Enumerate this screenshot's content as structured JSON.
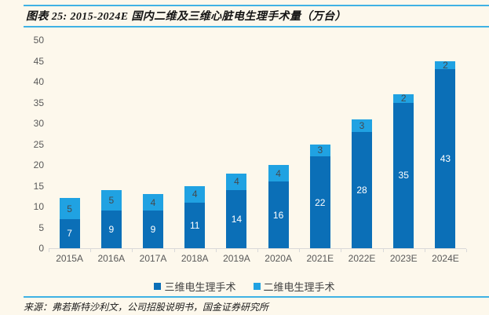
{
  "header": {
    "title": "图表 25: 2015-2024E 国内二维及三维心脏电生理手术量（万台）"
  },
  "footer": {
    "source": "来源：弗若斯特沙利文，公司招股说明书，国金证券研究所"
  },
  "colors": {
    "background": "#FDF8EC",
    "rule_blue": "#3FB2E4",
    "axis_gray": "#D9D9D9",
    "label_gray": "#595959",
    "series_3d_blue": "#0B6FB7",
    "series_2d_blue": "#20A2E2"
  },
  "chart_data": {
    "type": "bar",
    "stacked": true,
    "title": "2015-2024E 国内二维及三维心脏电生理手术量（万台）",
    "categories": [
      "2015A",
      "2016A",
      "2017A",
      "2018A",
      "2019A",
      "2020A",
      "2021E",
      "2022E",
      "2023E",
      "2024E"
    ],
    "series": [
      {
        "name": "三维电生理手术",
        "color": "#0B6FB7",
        "label_color": "#FFFFFF",
        "values": [
          7,
          9,
          9,
          11,
          14,
          16,
          22,
          28,
          35,
          43
        ]
      },
      {
        "name": "二维电生理手术",
        "color": "#20A2E2",
        "label_color": "#44494D",
        "values": [
          5,
          5,
          4,
          4,
          4,
          4,
          3,
          3,
          2,
          2
        ]
      }
    ],
    "totals": [
      12,
      14,
      13,
      15,
      18,
      20,
      25,
      31,
      37,
      45
    ],
    "ylim": [
      0,
      50
    ],
    "ytick_step": 5,
    "grid": false,
    "legend_position": "bottom"
  }
}
